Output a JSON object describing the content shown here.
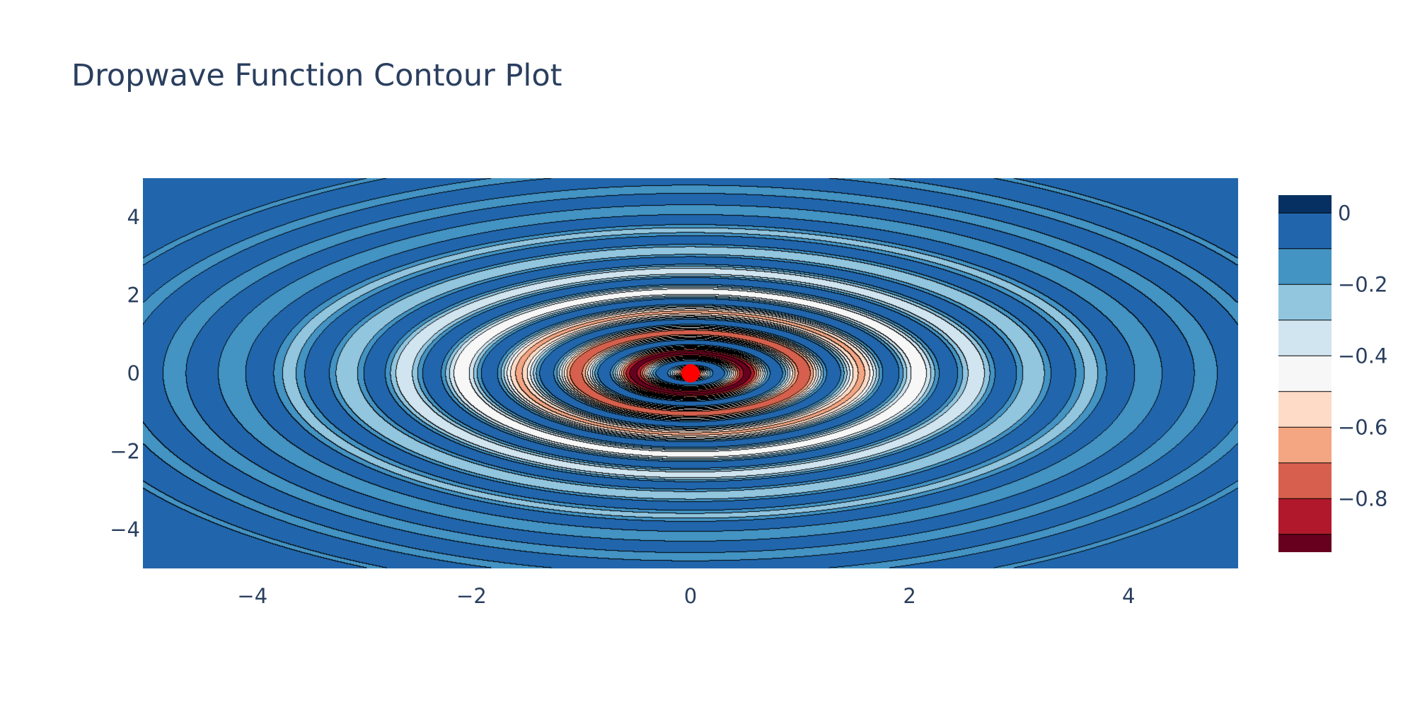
{
  "chart_data": {
    "type": "contour",
    "title": "Dropwave Function Contour Plot",
    "xlabel": "",
    "ylabel": "",
    "function": "dropwave",
    "xlim": [
      -5,
      5
    ],
    "ylim": [
      -5,
      5
    ],
    "x_ticks": [
      -4,
      -2,
      0,
      2,
      4
    ],
    "x_tick_labels": [
      "−4",
      "−2",
      "0",
      "2",
      "4"
    ],
    "y_ticks": [
      4,
      2,
      0,
      -2,
      -4
    ],
    "y_tick_labels": [
      "4",
      "2",
      "0",
      "−2",
      "−4"
    ],
    "z_range": [
      -0.95,
      0.05
    ],
    "colorscale": "RdBu",
    "contour_levels": [
      -0.9,
      -0.8,
      -0.7,
      -0.6,
      -0.5,
      -0.4,
      -0.3,
      -0.2,
      -0.1,
      0
    ],
    "level_colors": [
      "#67001f",
      "#b2182b",
      "#d6604d",
      "#f4a582",
      "#fddbc7",
      "#f7f7f7",
      "#d1e5f0",
      "#92c5de",
      "#4393c3",
      "#2166ac",
      "#053061"
    ],
    "line_color": "#000000",
    "colorbar": {
      "ticks": [
        0,
        -0.2,
        -0.4,
        -0.6,
        -0.8
      ],
      "tick_labels": [
        "0",
        "−0.2",
        "−0.4",
        "−0.6",
        "−0.8"
      ]
    },
    "marker": {
      "x": 0,
      "y": 0,
      "color": "#ff0000"
    },
    "grid": false,
    "legend": "none"
  }
}
